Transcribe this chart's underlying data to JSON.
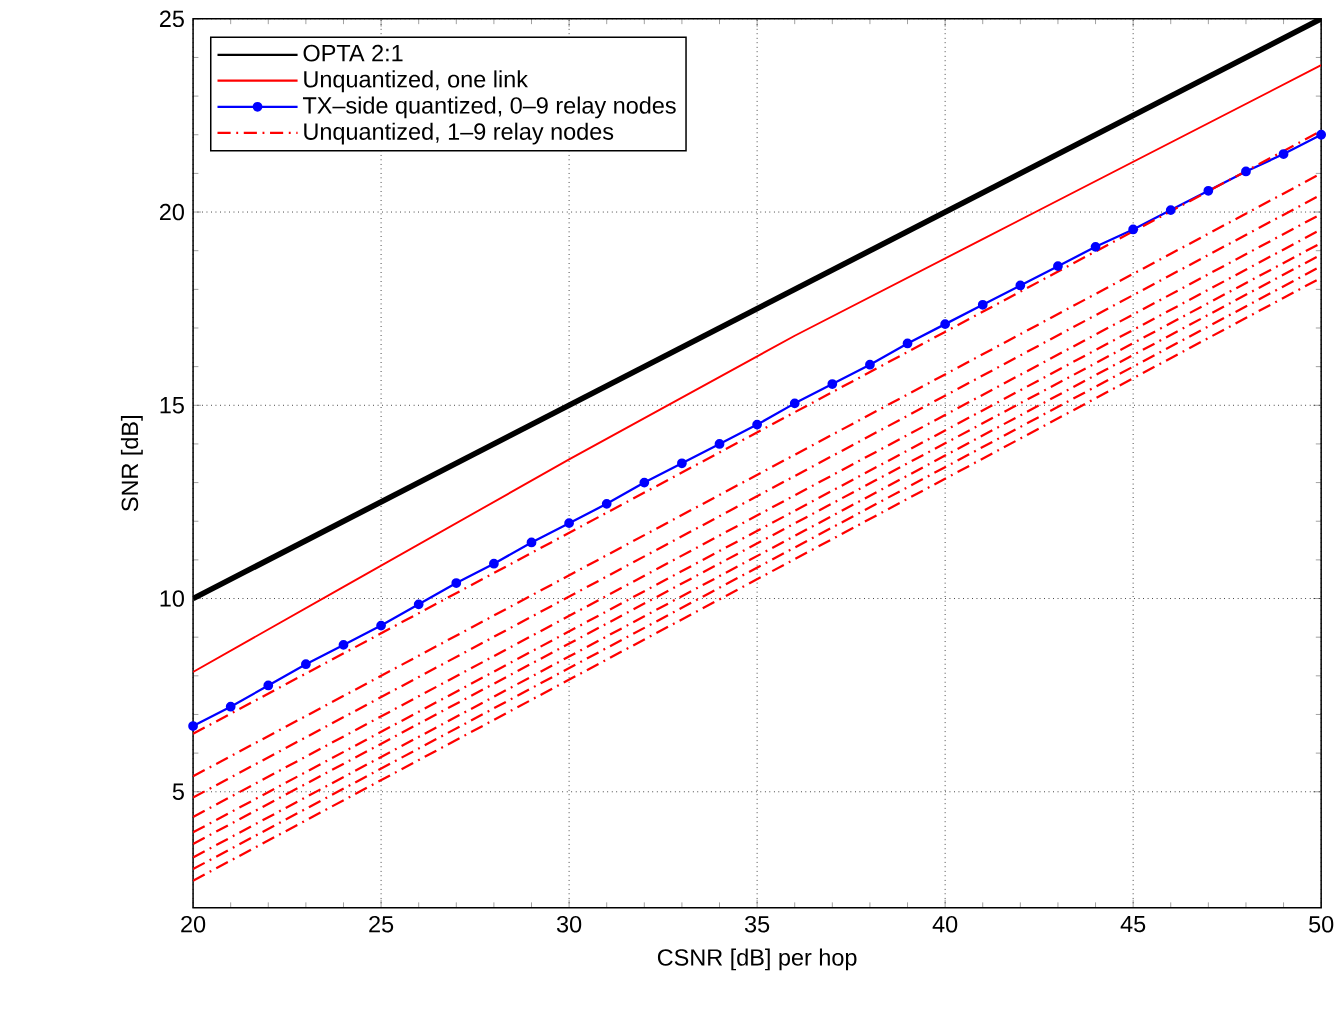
{
  "chart_data": {
    "type": "line",
    "xlabel": "CSNR [dB] per hop",
    "ylabel": "SNR [dB]",
    "xlim": [
      20,
      50
    ],
    "ylim": [
      2,
      25
    ],
    "xticks": [
      20,
      25,
      30,
      35,
      40,
      45,
      50
    ],
    "yticks": [
      5,
      10,
      15,
      20,
      25
    ],
    "grid": true,
    "legend": "top left",
    "series": [
      {
        "name": "OPTA 2:1",
        "color": "#000000",
        "line_style": "solid",
        "marker": "none",
        "x": [
          20,
          50
        ],
        "values": [
          10,
          25
        ]
      },
      {
        "name": "Unquantized, one link",
        "color": "#ff0000",
        "line_style": "solid",
        "marker": "none",
        "x": [
          20,
          24,
          30,
          36,
          41,
          50
        ],
        "values": [
          8.1,
          10.3,
          13.6,
          16.8,
          19.3,
          23.8
        ]
      },
      {
        "name": "TX–side quantized, 0–9 relay nodes",
        "color": "#0000ff",
        "line_style": "solid",
        "marker": "circle",
        "x": [
          20,
          21,
          22,
          23,
          24,
          25,
          26,
          27,
          28,
          29,
          30,
          31,
          32,
          33,
          34,
          35,
          36,
          37,
          38,
          39,
          40,
          41,
          42,
          43,
          44,
          45,
          46,
          47,
          48,
          49,
          50
        ],
        "values": [
          6.7,
          7.2,
          7.75,
          8.3,
          8.8,
          9.3,
          9.85,
          10.4,
          10.9,
          11.45,
          11.95,
          12.45,
          13.0,
          13.5,
          14.0,
          14.5,
          15.05,
          15.55,
          16.05,
          16.6,
          17.1,
          17.6,
          18.1,
          18.6,
          19.1,
          19.55,
          20.05,
          20.55,
          21.05,
          21.5,
          22.0
        ]
      },
      {
        "name": "Unquantized, 1–9 relay nodes",
        "color": "#ff0000",
        "line_style": "dashdot",
        "marker": "none",
        "x": [
          20,
          50
        ],
        "values": [
          6.5,
          22.1
        ]
      },
      {
        "color": "#ff0000",
        "line_style": "dashdot",
        "marker": "none",
        "x": [
          20,
          50
        ],
        "values": [
          5.4,
          21.0
        ]
      },
      {
        "color": "#ff0000",
        "line_style": "dashdot",
        "marker": "none",
        "x": [
          20,
          50
        ],
        "values": [
          4.85,
          20.45
        ]
      },
      {
        "color": "#ff0000",
        "line_style": "dashdot",
        "marker": "none",
        "x": [
          20,
          50
        ],
        "values": [
          4.35,
          19.95
        ]
      },
      {
        "color": "#ff0000",
        "line_style": "dashdot",
        "marker": "none",
        "x": [
          20,
          50
        ],
        "values": [
          3.95,
          19.55
        ]
      },
      {
        "color": "#ff0000",
        "line_style": "dashdot",
        "marker": "none",
        "x": [
          20,
          50
        ],
        "values": [
          3.65,
          19.2
        ]
      },
      {
        "color": "#ff0000",
        "line_style": "dashdot",
        "marker": "none",
        "x": [
          20,
          50
        ],
        "values": [
          3.3,
          18.9
        ]
      },
      {
        "color": "#ff0000",
        "line_style": "dashdot",
        "marker": "none",
        "x": [
          20,
          50
        ],
        "values": [
          3.0,
          18.6
        ]
      },
      {
        "color": "#ff0000",
        "line_style": "dashdot",
        "marker": "none",
        "x": [
          20,
          50
        ],
        "values": [
          2.7,
          18.3
        ]
      }
    ]
  }
}
